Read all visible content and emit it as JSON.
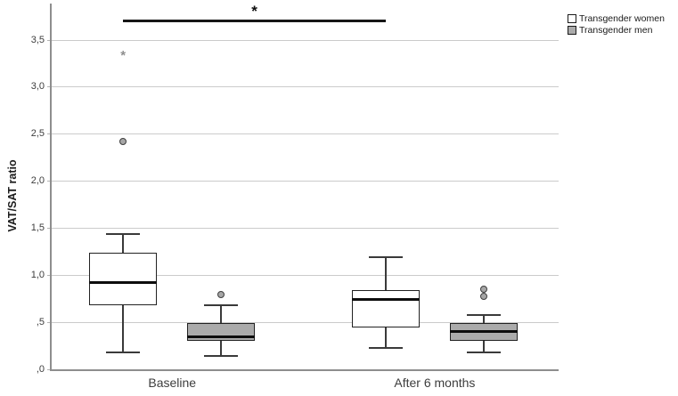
{
  "figure": {
    "background": "#ffffff"
  },
  "chart_data": {
    "type": "boxplot",
    "title": "",
    "xlabel": "",
    "ylabel": "VAT/SAT ratio",
    "categories": [
      "Baseline",
      "After 6 months"
    ],
    "ytick_labels": [
      "3,5",
      "3,0",
      "2,5",
      "2,0",
      "1,5",
      "1,0",
      ",5",
      ",0"
    ],
    "ytick_values": [
      3.5,
      3.0,
      2.5,
      2.0,
      1.5,
      1.0,
      0.5,
      0.0
    ],
    "ylim": [
      0,
      3.9
    ],
    "grid": true,
    "legend_position": "top-right",
    "colors": {
      "women_fill": "#ffffff",
      "men_fill": "#ababab",
      "gridline": "#cbcbcb",
      "axis": "#8e8e8e",
      "box_border": "#222222"
    },
    "series": [
      {
        "name": "Transgender women",
        "fill": "#ffffff",
        "boxes": [
          {
            "category": "Baseline",
            "whisker_low": 0.18,
            "q1": 0.68,
            "median": 0.92,
            "q3": 1.24,
            "whisker_high": 1.44,
            "outliers": [
              {
                "value": 2.42,
                "marker": "circle"
              },
              {
                "value": 3.36,
                "marker": "asterisk"
              }
            ]
          },
          {
            "category": "After 6 months",
            "whisker_low": 0.23,
            "q1": 0.44,
            "median": 0.74,
            "q3": 0.84,
            "whisker_high": 1.19,
            "outliers": []
          }
        ]
      },
      {
        "name": "Transgender men",
        "fill": "#ababab",
        "boxes": [
          {
            "category": "Baseline",
            "whisker_low": 0.14,
            "q1": 0.3,
            "median": 0.35,
            "q3": 0.49,
            "whisker_high": 0.68,
            "outliers": [
              {
                "value": 0.79,
                "marker": "circle"
              }
            ]
          },
          {
            "category": "After 6 months",
            "whisker_low": 0.18,
            "q1": 0.3,
            "median": 0.4,
            "q3": 0.49,
            "whisker_high": 0.58,
            "outliers": [
              {
                "value": 0.78,
                "marker": "circle"
              },
              {
                "value": 0.85,
                "marker": "circle"
              }
            ]
          }
        ]
      }
    ],
    "significance": {
      "label": "*",
      "series": "Transgender women",
      "from_category": "Baseline",
      "to_category": "After 6 months",
      "bar_value": 3.7
    }
  }
}
